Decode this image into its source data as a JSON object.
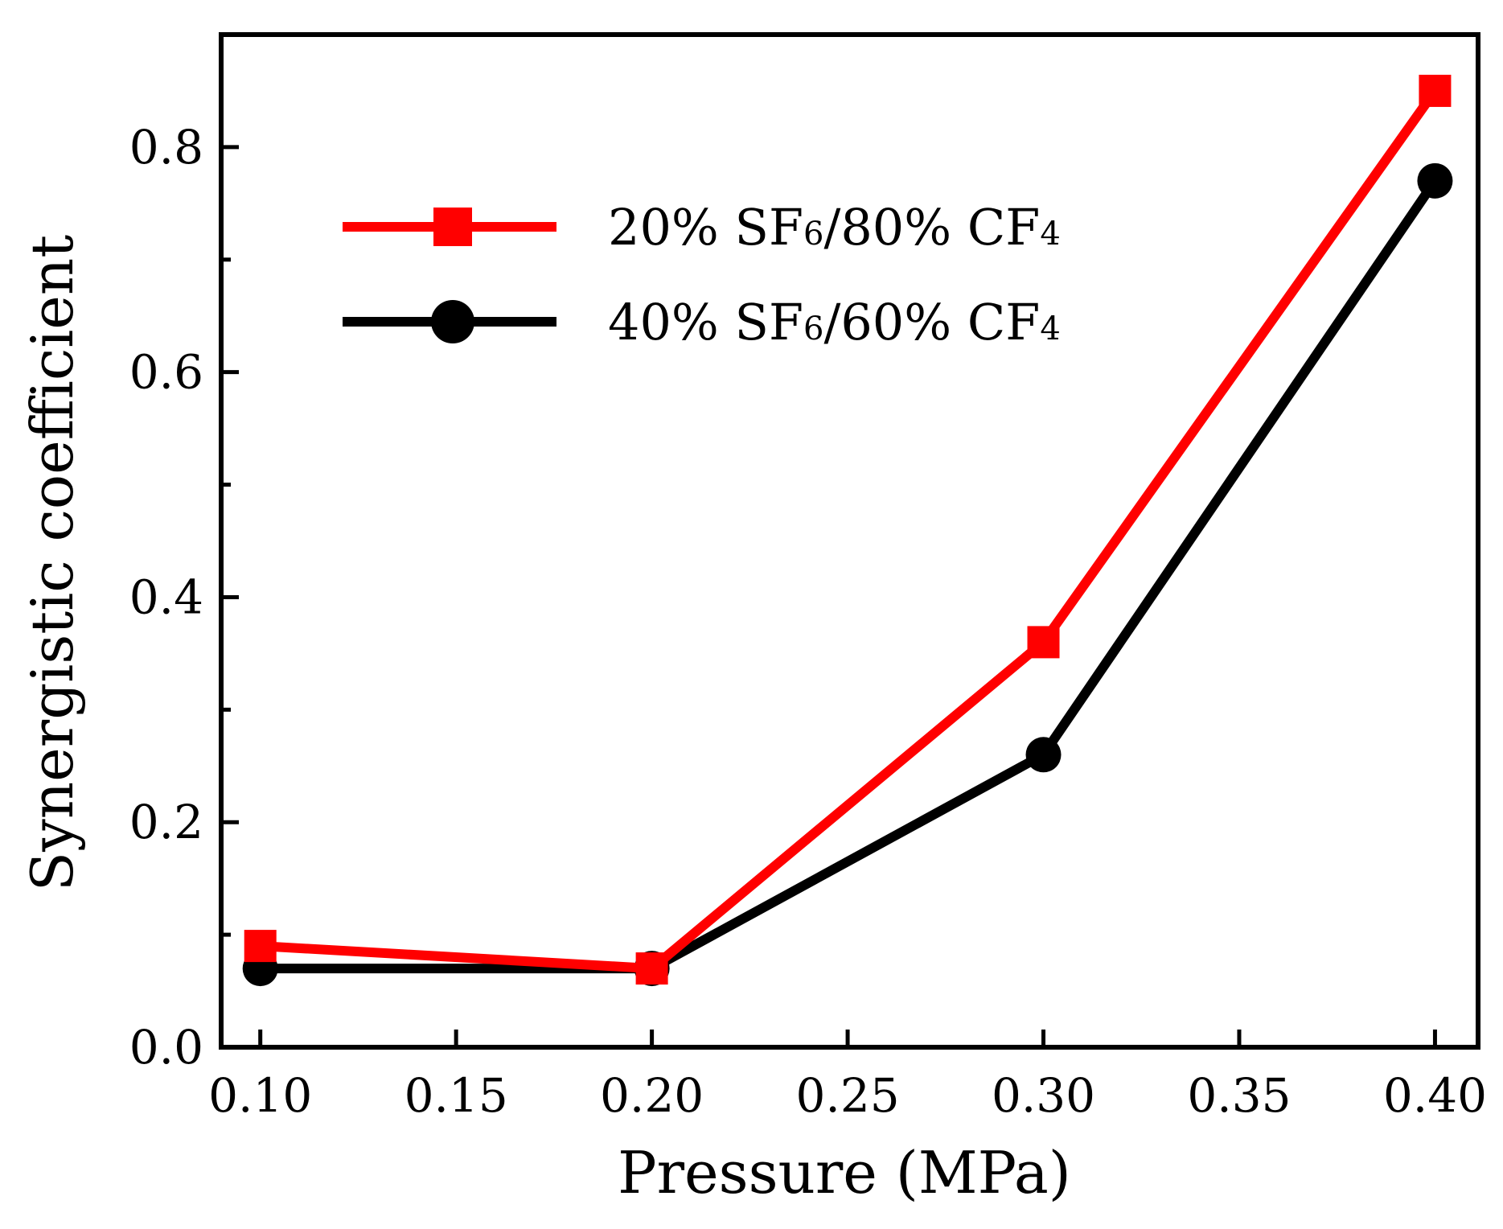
{
  "chart_data": {
    "type": "line",
    "title": "",
    "xlabel": "Pressure (MPa)",
    "ylabel": "Synergistic coefficient",
    "xlim": [
      0.09,
      0.411
    ],
    "ylim": [
      0.0,
      0.9
    ],
    "xticks": [
      0.1,
      0.15,
      0.2,
      0.25,
      0.3,
      0.35,
      0.4
    ],
    "xtick_labels": [
      "0.10",
      "0.15",
      "0.20",
      "0.25",
      "0.30",
      "0.35",
      "0.40"
    ],
    "yticks": [
      0.0,
      0.2,
      0.4,
      0.6,
      0.8
    ],
    "ytick_labels": [
      "0.0",
      "0.2",
      "0.4",
      "0.6",
      "0.8"
    ],
    "yminor_ticks": [
      0.1,
      0.3,
      0.5,
      0.7
    ],
    "grid": false,
    "legend_position": "upper-left",
    "series": [
      {
        "name": "20% SF6/80% CF4",
        "label_parts": [
          "20% SF",
          "6",
          "/80% CF",
          "4"
        ],
        "color": "#ff0000",
        "marker": "square",
        "x": [
          0.1,
          0.2,
          0.3,
          0.4
        ],
        "values": [
          0.09,
          0.07,
          0.36,
          0.85
        ]
      },
      {
        "name": "40% SF6/60% CF4",
        "label_parts": [
          "40% SF",
          "6",
          "/60% CF",
          "4"
        ],
        "color": "#000000",
        "marker": "circle",
        "x": [
          0.1,
          0.2,
          0.3,
          0.4
        ],
        "values": [
          0.07,
          0.07,
          0.26,
          0.77
        ]
      }
    ]
  }
}
